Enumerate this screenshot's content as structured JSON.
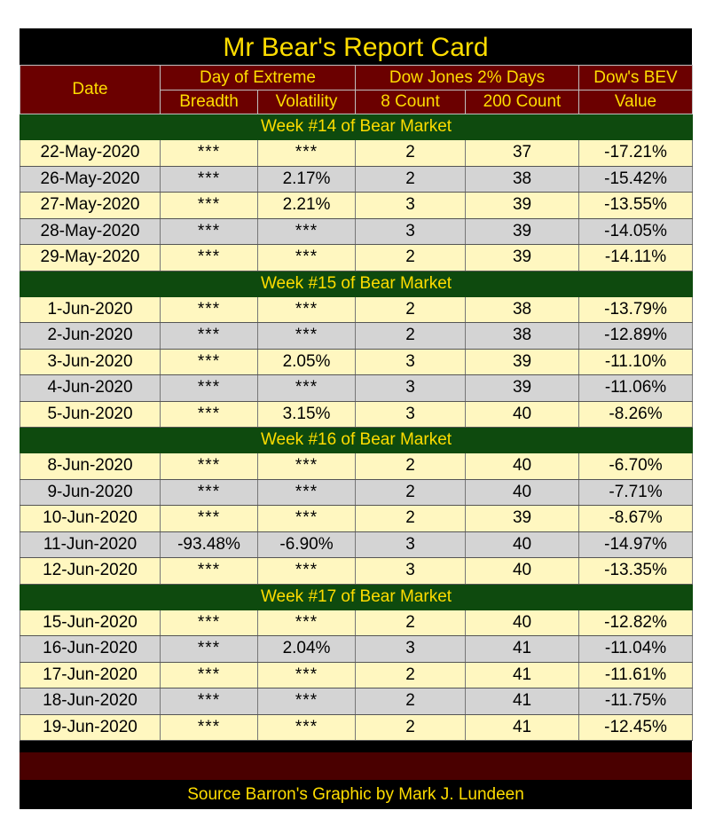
{
  "title": "Mr Bear's Report Card",
  "footer": "Source Barron's  Graphic by Mark J. Lundeen",
  "colors": {
    "background": "#000000",
    "header_bg": "#6b0000",
    "week_bg": "#0e4a0e",
    "text_gold": "#ffdd00",
    "row_light": "#fff7c0",
    "row_grey": "#d4d4d4"
  },
  "headers": {
    "date": "Date",
    "extreme_group": "Day of Extreme",
    "breadth": "Breadth",
    "volatility": "Volatility",
    "dow_group": "Dow Jones 2% Days",
    "count8": "8 Count",
    "count200": "200 Count",
    "bev_group": "Dow's BEV",
    "bev_value": "Value"
  },
  "chart_data": {
    "type": "table",
    "title": "Mr Bear's Report Card",
    "columns": [
      "Date",
      "Breadth",
      "Volatility",
      "8 Count",
      "200 Count",
      "Dow's BEV Value"
    ],
    "groups": [
      {
        "label": "Week #14 of Bear Market",
        "rows": [
          [
            "22-May-2020",
            "***",
            "***",
            "2",
            "37",
            "-17.21%"
          ],
          [
            "26-May-2020",
            "***",
            "2.17%",
            "2",
            "38",
            "-15.42%"
          ],
          [
            "27-May-2020",
            "***",
            "2.21%",
            "3",
            "39",
            "-13.55%"
          ],
          [
            "28-May-2020",
            "***",
            "***",
            "3",
            "39",
            "-14.05%"
          ],
          [
            "29-May-2020",
            "***",
            "***",
            "2",
            "39",
            "-14.11%"
          ]
        ]
      },
      {
        "label": "Week #15 of Bear Market",
        "rows": [
          [
            "1-Jun-2020",
            "***",
            "***",
            "2",
            "38",
            "-13.79%"
          ],
          [
            "2-Jun-2020",
            "***",
            "***",
            "2",
            "38",
            "-12.89%"
          ],
          [
            "3-Jun-2020",
            "***",
            "2.05%",
            "3",
            "39",
            "-11.10%"
          ],
          [
            "4-Jun-2020",
            "***",
            "***",
            "3",
            "39",
            "-11.06%"
          ],
          [
            "5-Jun-2020",
            "***",
            "3.15%",
            "3",
            "40",
            "-8.26%"
          ]
        ]
      },
      {
        "label": "Week #16 of Bear Market",
        "rows": [
          [
            "8-Jun-2020",
            "***",
            "***",
            "2",
            "40",
            "-6.70%"
          ],
          [
            "9-Jun-2020",
            "***",
            "***",
            "2",
            "40",
            "-7.71%"
          ],
          [
            "10-Jun-2020",
            "***",
            "***",
            "2",
            "39",
            "-8.67%"
          ],
          [
            "11-Jun-2020",
            "-93.48%",
            "-6.90%",
            "3",
            "40",
            "-14.97%"
          ],
          [
            "12-Jun-2020",
            "***",
            "***",
            "3",
            "40",
            "-13.35%"
          ]
        ]
      },
      {
        "label": "Week #17 of Bear Market",
        "rows": [
          [
            "15-Jun-2020",
            "***",
            "***",
            "2",
            "40",
            "-12.82%"
          ],
          [
            "16-Jun-2020",
            "***",
            "2.04%",
            "3",
            "41",
            "-11.04%"
          ],
          [
            "17-Jun-2020",
            "***",
            "***",
            "2",
            "41",
            "-11.61%"
          ],
          [
            "18-Jun-2020",
            "***",
            "***",
            "2",
            "41",
            "-11.75%"
          ],
          [
            "19-Jun-2020",
            "***",
            "***",
            "2",
            "41",
            "-12.45%"
          ]
        ]
      }
    ]
  }
}
